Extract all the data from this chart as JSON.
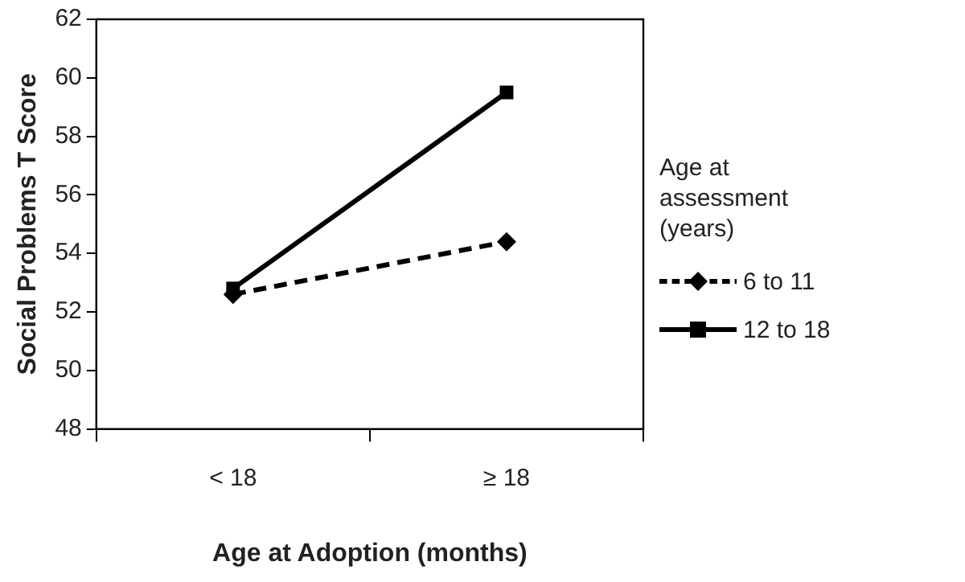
{
  "chart_data": {
    "type": "line",
    "xlabel": "Age at Adoption (months)",
    "ylabel": "Social Problems T Score",
    "legend_title": "Age at assessment (years)",
    "categories": [
      "< 18",
      "≥ 18"
    ],
    "series": [
      {
        "name": "6 to 11",
        "color": "#000000",
        "values": [
          52.6,
          54.4
        ],
        "marker": "diamond",
        "line_style": "dashed"
      },
      {
        "name": "12 to 18",
        "color": "#000000",
        "values": [
          52.8,
          59.5
        ],
        "marker": "square",
        "line_style": "solid"
      }
    ],
    "ylim": [
      48,
      62
    ],
    "yticks": [
      48,
      50,
      52,
      54,
      56,
      58,
      60,
      62
    ],
    "grid": false,
    "legend": "right"
  }
}
